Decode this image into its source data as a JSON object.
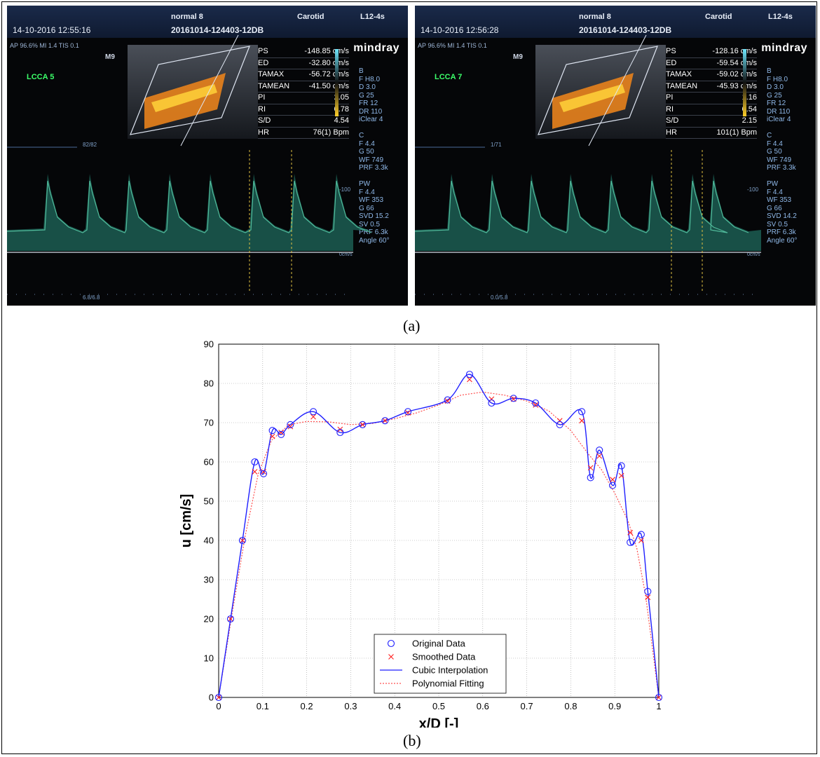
{
  "panels": [
    {
      "datetime": "14-10-2016 12:55:16",
      "preset": "normal 8",
      "study_id": "20161014-124403-12DB",
      "exam": "Carotid",
      "probe": "L12-4s",
      "acoustics": "AP 96.6%  MI 1.4 TIS 0.1",
      "mode_label": "M9",
      "vessel_label": "LCCA 5",
      "brand": "mindray",
      "measurements": [
        {
          "name": "PS",
          "value": "-148.85 cm/s"
        },
        {
          "name": "ED",
          "value": "-32.80 cm/s"
        },
        {
          "name": "TAMAX",
          "value": "-56.72 cm/s"
        },
        {
          "name": "TAMEAN",
          "value": "-41.50 cm/s"
        },
        {
          "name": "PI",
          "value": "2.05"
        },
        {
          "name": "RI",
          "value": "0.78"
        },
        {
          "name": "S/D",
          "value": "4.54"
        },
        {
          "name": "HR",
          "value": "76(1) Bpm"
        }
      ],
      "params": "B\nF H8.0\nD 3.0\nG 25\nFR 12\nDR 110\niClear 4\n\nC\nF 4.4\nG 50\nWF 749\nPRF 3.3k\n\nPW\nF 4.4\nWF 353\nG 66\nSVD 15.2\nSV 0.5\nPRF 6.3k\nAngle 60°",
      "scale_top": "82/82",
      "scale_bottom": "6.8/6.8",
      "baseline_label": "0cm/s",
      "scale_100": "-100"
    },
    {
      "datetime": "14-10-2016 12:56:28",
      "preset": "normal 8",
      "study_id": "20161014-124403-12DB",
      "exam": "Carotid",
      "probe": "L12-4s",
      "acoustics": "AP 96.6%  MI 1.4 TIS 0.1",
      "mode_label": "M9",
      "vessel_label": "LCCA 7",
      "brand": "mindray",
      "measurements": [
        {
          "name": "PS",
          "value": "-128.16 cm/s"
        },
        {
          "name": "ED",
          "value": "-59.54 cm/s"
        },
        {
          "name": "TAMAX",
          "value": "-59.02 cm/s"
        },
        {
          "name": "TAMEAN",
          "value": "-45.93 cm/s"
        },
        {
          "name": "PI",
          "value": "1.16"
        },
        {
          "name": "RI",
          "value": "0.54"
        },
        {
          "name": "S/D",
          "value": "2.15"
        },
        {
          "name": "HR",
          "value": "101(1) Bpm"
        }
      ],
      "params": "B\nF H8.0\nD 3.0\nG 25\nFR 12\nDR 110\niClear 4\n\nC\nF 4.4\nG 50\nWF 749\nPRF 3.3k\n\nPW\nF 4.4\nWF 353\nG 66\nSVD 14.2\nSV 0.5\nPRF 6.3k\nAngle 60°",
      "scale_top": "1/71",
      "scale_bottom": "0.0/5.8",
      "baseline_label": "0cm/s",
      "scale_100": "-100"
    }
  ],
  "captions": {
    "a": "(a)",
    "b": "(b)"
  },
  "chart_data": {
    "type": "line",
    "xlabel": "x/D [-]",
    "ylabel": "u [cm/s]",
    "xlim": [
      0,
      1
    ],
    "ylim": [
      0,
      90
    ],
    "xticks": [
      "0",
      "0.1",
      "0.2",
      "0.3",
      "0.4",
      "0.5",
      "0.6",
      "0.7",
      "0.8",
      "0.9",
      "1"
    ],
    "yticks": [
      "0",
      "10",
      "20",
      "30",
      "40",
      "50",
      "60",
      "70",
      "80",
      "90"
    ],
    "grid": true,
    "legend_position": "bottom-center",
    "series": [
      {
        "name": "Original Data",
        "style": "markers-circle",
        "color": "#1f1fff",
        "x": [
          0,
          0.027,
          0.054,
          0.082,
          0.102,
          0.122,
          0.142,
          0.163,
          0.215,
          0.276,
          0.327,
          0.378,
          0.43,
          0.52,
          0.57,
          0.62,
          0.67,
          0.72,
          0.775,
          0.825,
          0.845,
          0.865,
          0.895,
          0.915,
          0.935,
          0.96,
          0.975,
          1.0
        ],
        "y": [
          0,
          20,
          40,
          60,
          57,
          68,
          67,
          69.5,
          72.8,
          67.5,
          69.5,
          70.5,
          72.8,
          75.8,
          82.3,
          75,
          76.2,
          75,
          69.5,
          72.8,
          56,
          63,
          54,
          59,
          39.5,
          41.5,
          27,
          0
        ]
      },
      {
        "name": "Smoothed Data",
        "style": "markers-x",
        "color": "#ff2020",
        "x": [
          0,
          0.027,
          0.054,
          0.082,
          0.102,
          0.122,
          0.142,
          0.163,
          0.215,
          0.276,
          0.327,
          0.378,
          0.43,
          0.52,
          0.57,
          0.62,
          0.67,
          0.72,
          0.775,
          0.825,
          0.845,
          0.865,
          0.895,
          0.915,
          0.935,
          0.96,
          0.975,
          1.0
        ],
        "y": [
          0,
          20,
          40,
          57.5,
          57.5,
          66.5,
          67.5,
          69,
          71.5,
          68.3,
          69.5,
          70.5,
          72.5,
          75.5,
          81,
          76,
          76,
          74.5,
          70.5,
          70.5,
          58.5,
          61.5,
          55.5,
          56.5,
          42,
          40,
          25.5,
          0
        ]
      },
      {
        "name": "Cubic Interpolation",
        "style": "line-solid",
        "color": "#1f1fff"
      },
      {
        "name": "Polynomial Fitting",
        "style": "line-dotted",
        "color": "#ff5050",
        "x": [
          0,
          0.03,
          0.06,
          0.09,
          0.12,
          0.16,
          0.2,
          0.25,
          0.3,
          0.35,
          0.4,
          0.45,
          0.5,
          0.55,
          0.6,
          0.65,
          0.7,
          0.75,
          0.8,
          0.84,
          0.87,
          0.9,
          0.93,
          0.95,
          0.97,
          1.0
        ],
        "y": [
          0,
          21,
          41,
          57,
          65.5,
          69.5,
          70.3,
          70.2,
          69.5,
          69.8,
          71,
          72.5,
          74.5,
          77,
          77.8,
          77,
          75.5,
          73,
          68,
          62,
          58,
          52,
          45,
          38,
          26,
          0
        ]
      }
    ]
  }
}
